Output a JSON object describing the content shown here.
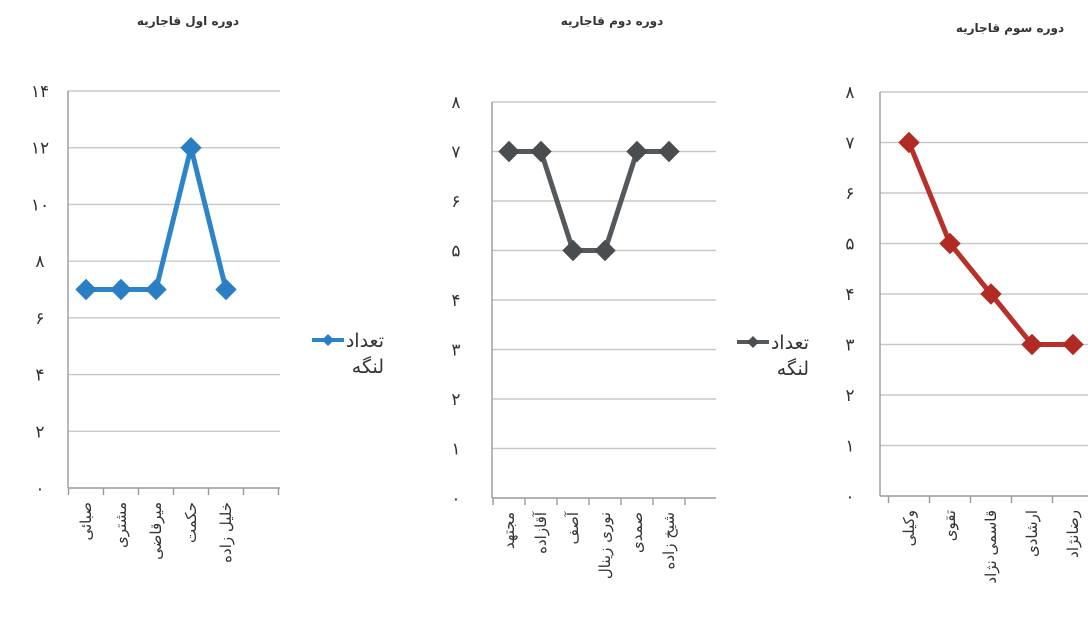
{
  "chart_data": [
    {
      "type": "line",
      "title": "دوره اول قاجاریه",
      "categories": [
        "صبائی",
        "مشتری",
        "میرقاضی",
        "حکمت",
        "خلیل زاده"
      ],
      "series": [
        {
          "name": "تعداد لنگه",
          "values": [
            7,
            7,
            7,
            12,
            7
          ]
        }
      ],
      "ylim": [
        0,
        14
      ],
      "yticks": [
        "۰",
        "۲",
        "۴",
        "۶",
        "۸",
        "۱۰",
        "۱۲",
        "۱۴"
      ],
      "grid": true,
      "legend": "right",
      "color": "#2e84c9",
      "marker_color": "#2a7fc4"
    },
    {
      "type": "line",
      "title": "دوره دوم قاجاریه",
      "categories": [
        "مجتهد",
        "آقازاده",
        "آصف",
        "نوری زینال",
        "صمدی",
        "شیخ زاده"
      ],
      "series": [
        {
          "name": "تعداد لنگه",
          "values": [
            7,
            7,
            5,
            5,
            7,
            7
          ]
        }
      ],
      "ylim": [
        0,
        8
      ],
      "yticks": [
        "۰",
        "۱",
        "۲",
        "۳",
        "۴",
        "۵",
        "۶",
        "۷",
        "۸"
      ],
      "grid": true,
      "legend": "right",
      "color": "#56595c",
      "marker_color": "#4a4d50"
    },
    {
      "type": "line",
      "title": "دوره سوم قاجاریه",
      "categories": [
        "وکیلی",
        "تقوی",
        "قاسمی نژاد",
        "ارشادی",
        "رضانژاد"
      ],
      "series": [
        {
          "name": "تعداد لنگه",
          "values": [
            7,
            5,
            4,
            3,
            3
          ]
        }
      ],
      "ylim": [
        0,
        8
      ],
      "yticks": [
        "۰",
        "۱",
        "۲",
        "۳",
        "۴",
        "۵",
        "۶",
        "۷",
        "۸"
      ],
      "grid": true,
      "legend": "none",
      "color": "#b8302a",
      "marker_color": "#b12b25"
    }
  ],
  "legend_icons": [
    "diamond-marker-line-icon"
  ]
}
